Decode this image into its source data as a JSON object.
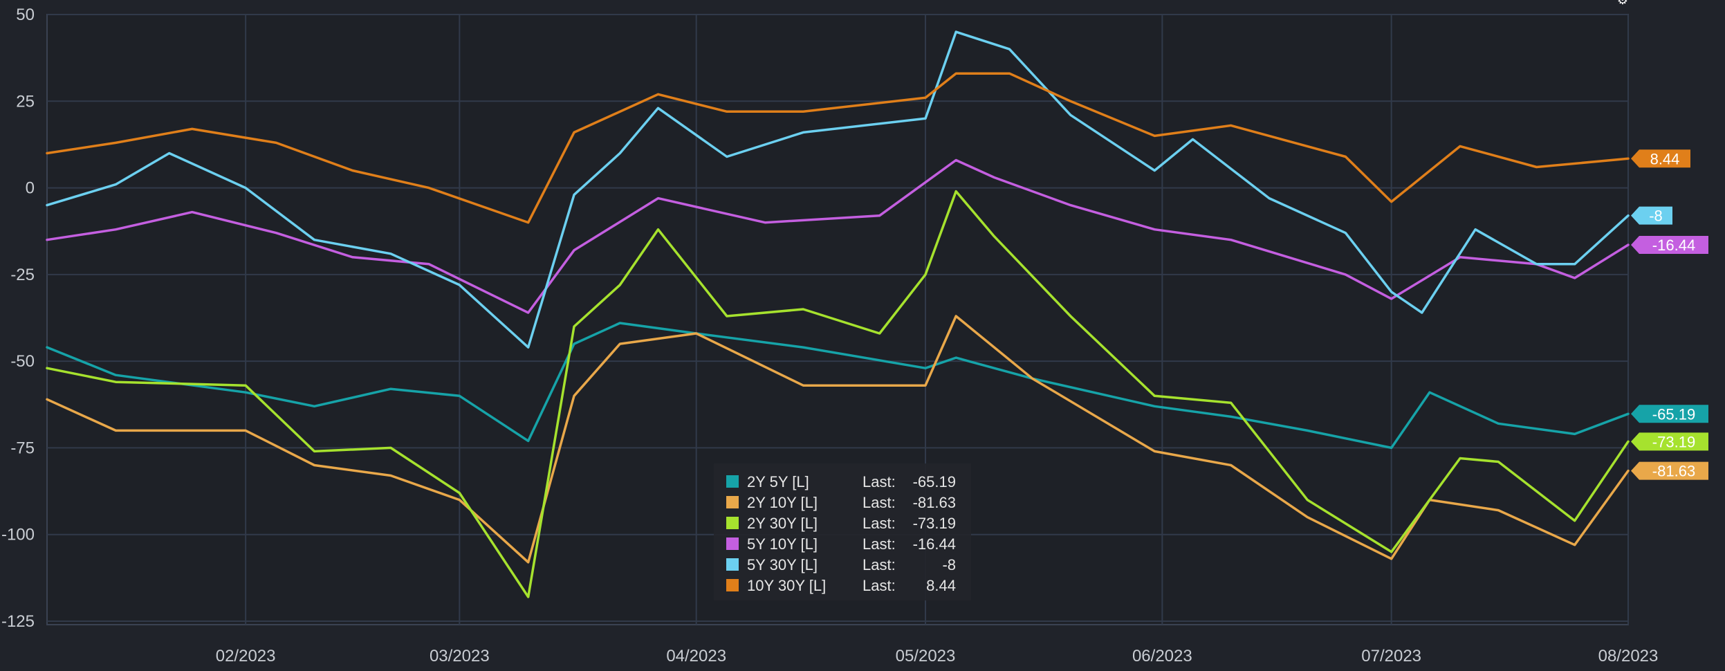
{
  "chart_data": {
    "type": "line",
    "title": "",
    "xlabel": "",
    "ylabel": "",
    "x_ticks": [
      "02/2023",
      "03/2023",
      "04/2023",
      "05/2023",
      "06/2023",
      "07/2023",
      "08/2023"
    ],
    "x_range": [
      "2023-01-06",
      "2023-08-01"
    ],
    "y_ticks": [
      50,
      25,
      0,
      -25,
      -50,
      -75,
      -100,
      -125
    ],
    "ylim": [
      -126,
      50
    ],
    "grid": true,
    "legend_position": "bottom-center",
    "series": [
      {
        "name": "2Y 5Y [L]",
        "color": "#16a3a8",
        "last": "-65.19",
        "end_value": -65.19,
        "points": [
          [
            "2023-01-06",
            -46
          ],
          [
            "2023-01-15",
            -54
          ],
          [
            "2023-02-01",
            -59
          ],
          [
            "2023-02-10",
            -63
          ],
          [
            "2023-02-20",
            -58
          ],
          [
            "2023-03-01",
            -60
          ],
          [
            "2023-03-10",
            -73
          ],
          [
            "2023-03-16",
            -45
          ],
          [
            "2023-03-22",
            -39
          ],
          [
            "2023-04-01",
            -42
          ],
          [
            "2023-04-15",
            -46
          ],
          [
            "2023-05-01",
            -52
          ],
          [
            "2023-05-05",
            -49
          ],
          [
            "2023-05-15",
            -55
          ],
          [
            "2023-05-31",
            -63
          ],
          [
            "2023-06-10",
            -66
          ],
          [
            "2023-06-20",
            -70
          ],
          [
            "2023-07-01",
            -75
          ],
          [
            "2023-07-06",
            -59
          ],
          [
            "2023-07-15",
            -68
          ],
          [
            "2023-07-25",
            -71
          ],
          [
            "2023-08-01",
            -65.19
          ]
        ]
      },
      {
        "name": "2Y 10Y [L]",
        "color": "#e9a84a",
        "last": "-81.63",
        "end_value": -81.63,
        "points": [
          [
            "2023-01-06",
            -61
          ],
          [
            "2023-01-15",
            -70
          ],
          [
            "2023-02-01",
            -70
          ],
          [
            "2023-02-10",
            -80
          ],
          [
            "2023-02-20",
            -83
          ],
          [
            "2023-03-01",
            -90
          ],
          [
            "2023-03-10",
            -108
          ],
          [
            "2023-03-16",
            -60
          ],
          [
            "2023-03-22",
            -45
          ],
          [
            "2023-04-01",
            -42
          ],
          [
            "2023-04-15",
            -57
          ],
          [
            "2023-05-01",
            -57
          ],
          [
            "2023-05-05",
            -37
          ],
          [
            "2023-05-15",
            -55
          ],
          [
            "2023-05-31",
            -76
          ],
          [
            "2023-06-10",
            -80
          ],
          [
            "2023-06-20",
            -95
          ],
          [
            "2023-07-01",
            -107
          ],
          [
            "2023-07-06",
            -90
          ],
          [
            "2023-07-15",
            -93
          ],
          [
            "2023-07-25",
            -103
          ],
          [
            "2023-08-01",
            -81.63
          ]
        ]
      },
      {
        "name": "2Y 30Y [L]",
        "color": "#a6e22e",
        "last": "-73.19",
        "end_value": -73.19,
        "points": [
          [
            "2023-01-06",
            -52
          ],
          [
            "2023-01-15",
            -56
          ],
          [
            "2023-02-01",
            -57
          ],
          [
            "2023-02-10",
            -76
          ],
          [
            "2023-02-20",
            -75
          ],
          [
            "2023-03-01",
            -88
          ],
          [
            "2023-03-10",
            -118
          ],
          [
            "2023-03-16",
            -40
          ],
          [
            "2023-03-22",
            -28
          ],
          [
            "2023-03-27",
            -12
          ],
          [
            "2023-04-05",
            -37
          ],
          [
            "2023-04-15",
            -35
          ],
          [
            "2023-04-25",
            -42
          ],
          [
            "2023-05-01",
            -25
          ],
          [
            "2023-05-05",
            -1
          ],
          [
            "2023-05-10",
            -14
          ],
          [
            "2023-05-20",
            -37
          ],
          [
            "2023-05-31",
            -60
          ],
          [
            "2023-06-10",
            -62
          ],
          [
            "2023-06-20",
            -90
          ],
          [
            "2023-07-01",
            -105
          ],
          [
            "2023-07-10",
            -78
          ],
          [
            "2023-07-15",
            -79
          ],
          [
            "2023-07-25",
            -96
          ],
          [
            "2023-08-01",
            -73.19
          ]
        ]
      },
      {
        "name": "5Y 10Y [L]",
        "color": "#c45fe0",
        "last": "-16.44",
        "end_value": -16.44,
        "points": [
          [
            "2023-01-06",
            -15
          ],
          [
            "2023-01-15",
            -12
          ],
          [
            "2023-01-25",
            -7
          ],
          [
            "2023-02-05",
            -13
          ],
          [
            "2023-02-15",
            -20
          ],
          [
            "2023-02-25",
            -22
          ],
          [
            "2023-03-10",
            -36
          ],
          [
            "2023-03-16",
            -18
          ],
          [
            "2023-03-27",
            -3
          ],
          [
            "2023-04-10",
            -10
          ],
          [
            "2023-04-25",
            -8
          ],
          [
            "2023-05-05",
            8
          ],
          [
            "2023-05-10",
            3
          ],
          [
            "2023-05-20",
            -5
          ],
          [
            "2023-05-31",
            -12
          ],
          [
            "2023-06-10",
            -15
          ],
          [
            "2023-06-25",
            -25
          ],
          [
            "2023-07-01",
            -32
          ],
          [
            "2023-07-10",
            -20
          ],
          [
            "2023-07-20",
            -22
          ],
          [
            "2023-07-25",
            -26
          ],
          [
            "2023-08-01",
            -16.44
          ]
        ]
      },
      {
        "name": "5Y 30Y [L]",
        "color": "#6cd0f0",
        "last": "-8",
        "end_value": -8,
        "points": [
          [
            "2023-01-06",
            -5
          ],
          [
            "2023-01-15",
            1
          ],
          [
            "2023-01-22",
            10
          ],
          [
            "2023-02-01",
            0
          ],
          [
            "2023-02-10",
            -15
          ],
          [
            "2023-02-20",
            -19
          ],
          [
            "2023-03-01",
            -28
          ],
          [
            "2023-03-10",
            -46
          ],
          [
            "2023-03-16",
            -2
          ],
          [
            "2023-03-22",
            10
          ],
          [
            "2023-03-27",
            23
          ],
          [
            "2023-04-05",
            9
          ],
          [
            "2023-04-15",
            16
          ],
          [
            "2023-05-01",
            20
          ],
          [
            "2023-05-05",
            45
          ],
          [
            "2023-05-12",
            40
          ],
          [
            "2023-05-20",
            21
          ],
          [
            "2023-05-31",
            5
          ],
          [
            "2023-06-05",
            14
          ],
          [
            "2023-06-15",
            -3
          ],
          [
            "2023-06-25",
            -13
          ],
          [
            "2023-07-01",
            -30
          ],
          [
            "2023-07-05",
            -36
          ],
          [
            "2023-07-12",
            -12
          ],
          [
            "2023-07-20",
            -22
          ],
          [
            "2023-07-25",
            -22
          ],
          [
            "2023-08-01",
            -8
          ]
        ]
      },
      {
        "name": "10Y 30Y [L]",
        "color": "#e07f1a",
        "last": "8.44",
        "end_value": 8.44,
        "points": [
          [
            "2023-01-06",
            10
          ],
          [
            "2023-01-15",
            13
          ],
          [
            "2023-01-25",
            17
          ],
          [
            "2023-02-05",
            13
          ],
          [
            "2023-02-15",
            5
          ],
          [
            "2023-02-25",
            0
          ],
          [
            "2023-03-10",
            -10
          ],
          [
            "2023-03-16",
            16
          ],
          [
            "2023-03-27",
            27
          ],
          [
            "2023-04-05",
            22
          ],
          [
            "2023-04-15",
            22
          ],
          [
            "2023-05-01",
            26
          ],
          [
            "2023-05-05",
            33
          ],
          [
            "2023-05-12",
            33
          ],
          [
            "2023-05-20",
            25
          ],
          [
            "2023-05-31",
            15
          ],
          [
            "2023-06-10",
            18
          ],
          [
            "2023-06-25",
            9
          ],
          [
            "2023-07-01",
            -4
          ],
          [
            "2023-07-10",
            12
          ],
          [
            "2023-07-20",
            6
          ],
          [
            "2023-08-01",
            8.44
          ]
        ]
      }
    ]
  }
}
